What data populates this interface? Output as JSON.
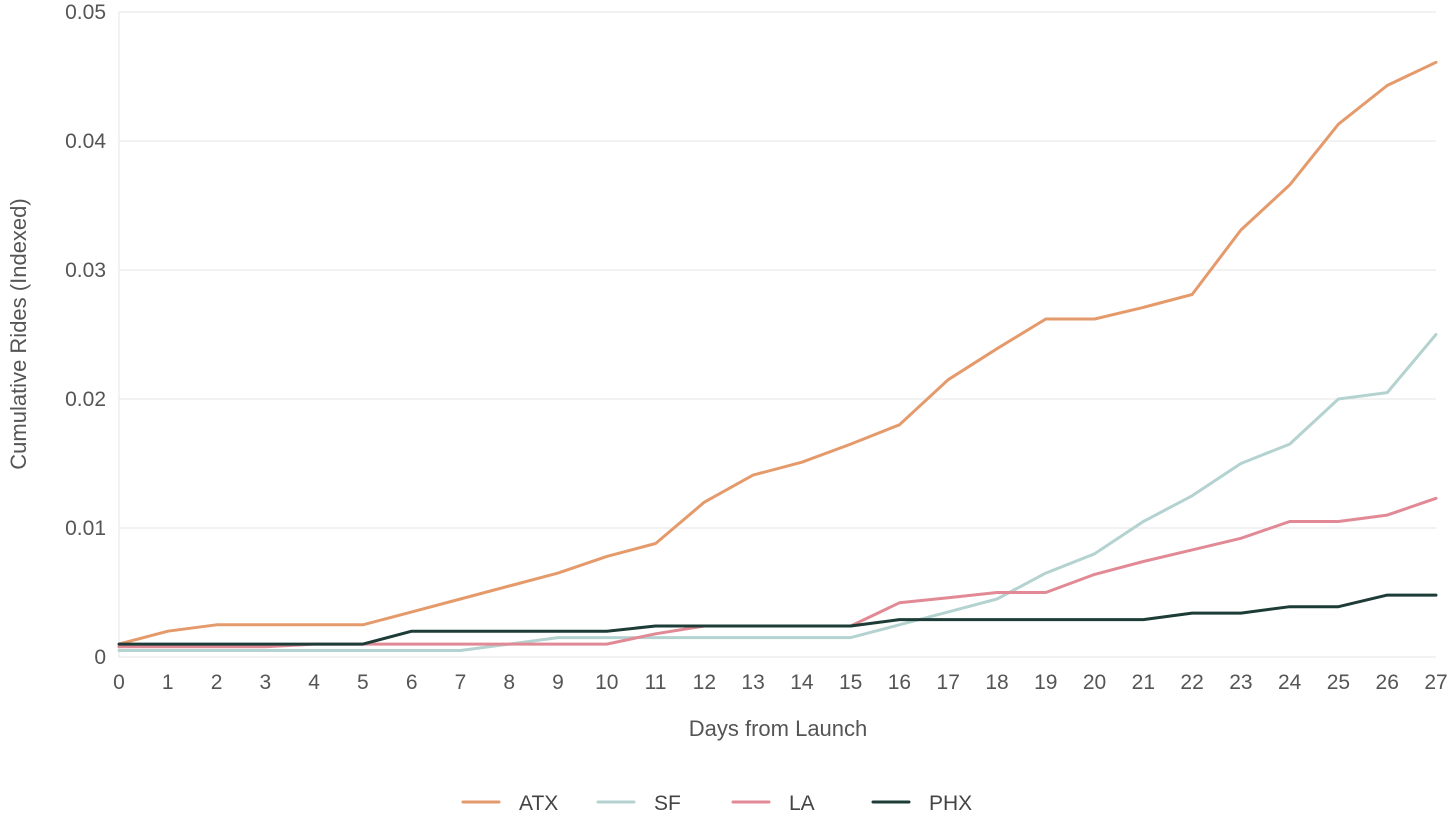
{
  "chart_data": {
    "type": "line",
    "title": "",
    "xlabel": "Days from Launch",
    "ylabel": "Cumulative Rides (Indexed)",
    "x": [
      0,
      1,
      2,
      3,
      4,
      5,
      6,
      7,
      8,
      9,
      10,
      11,
      12,
      13,
      14,
      15,
      16,
      17,
      18,
      19,
      20,
      21,
      22,
      23,
      24,
      25,
      26,
      27
    ],
    "xlim": [
      0,
      27
    ],
    "ylim": [
      0,
      0.05
    ],
    "yticks": [
      "0",
      "0.01",
      "0.02",
      "0.03",
      "0.04",
      "0.05"
    ],
    "grid": true,
    "legend": "bottom",
    "series": [
      {
        "name": "ATX",
        "color": "#e59a6b",
        "values": [
          0.001,
          0.002,
          0.0025,
          0.0025,
          0.0025,
          0.0025,
          0.0035,
          0.0045,
          0.0055,
          0.0065,
          0.0078,
          0.0088,
          0.012,
          0.0141,
          0.0151,
          0.0165,
          0.018,
          0.0215,
          0.0239,
          0.0262,
          0.0262,
          0.0271,
          0.0281,
          0.0331,
          0.0366,
          0.0413,
          0.0443,
          0.0461
        ]
      },
      {
        "name": "SF",
        "color": "#b4d3d0",
        "values": [
          0.0005,
          0.0005,
          0.0005,
          0.0005,
          0.0005,
          0.0005,
          0.0005,
          0.0005,
          0.001,
          0.0015,
          0.0015,
          0.0015,
          0.0015,
          0.0015,
          0.0015,
          0.0015,
          0.0025,
          0.0035,
          0.0045,
          0.0065,
          0.008,
          0.0105,
          0.0125,
          0.015,
          0.0165,
          0.02,
          0.0205,
          0.025
        ]
      },
      {
        "name": "LA",
        "color": "#e18a96",
        "values": [
          0.0008,
          0.0008,
          0.0008,
          0.0008,
          0.001,
          0.001,
          0.001,
          0.001,
          0.001,
          0.001,
          0.001,
          0.0018,
          0.0024,
          0.0024,
          0.0024,
          0.0024,
          0.0042,
          0.0046,
          0.005,
          0.005,
          0.0064,
          0.0074,
          0.0083,
          0.0092,
          0.0105,
          0.0105,
          0.011,
          0.0123
        ]
      },
      {
        "name": "PHX",
        "color": "#1e3c37",
        "values": [
          0.001,
          0.001,
          0.001,
          0.001,
          0.001,
          0.001,
          0.002,
          0.002,
          0.002,
          0.002,
          0.002,
          0.0024,
          0.0024,
          0.0024,
          0.0024,
          0.0024,
          0.0029,
          0.0029,
          0.0029,
          0.0029,
          0.0029,
          0.0029,
          0.0034,
          0.0034,
          0.0039,
          0.0039,
          0.0048,
          0.0048
        ]
      }
    ]
  }
}
